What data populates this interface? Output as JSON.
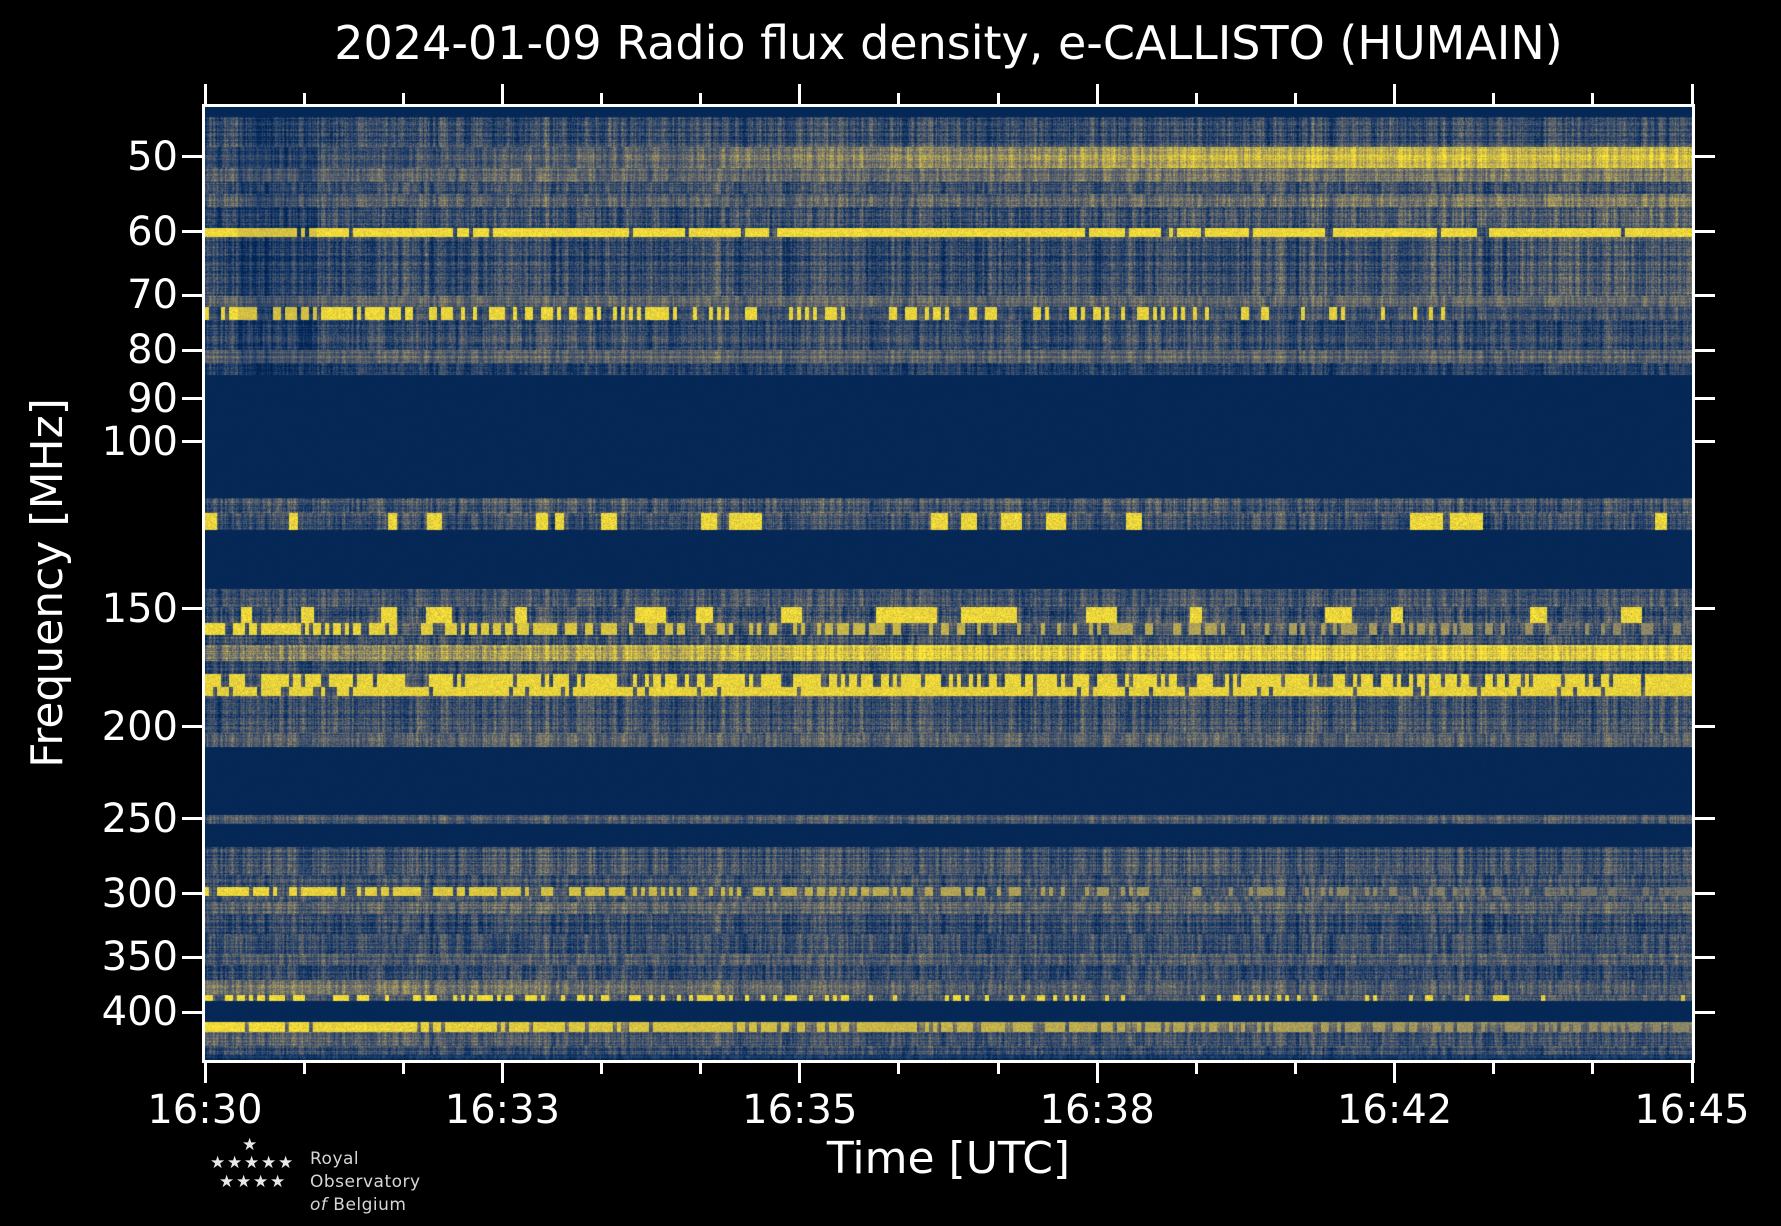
{
  "title": "2024-01-09 Radio flux density, e-CALLISTO (HUMAIN)",
  "xlabel": "Time [UTC]",
  "ylabel": "Frequency [MHz]",
  "logo": {
    "line1": "Royal Observatory",
    "line2_italic": "of",
    "line2_rest": "Belgium",
    "star_icon": "★"
  },
  "chart_data": {
    "type": "heatmap",
    "title": "2024-01-09 Radio flux density, e-CALLISTO (HUMAIN)",
    "xlabel": "Time [UTC]",
    "ylabel": "Frequency [MHz]",
    "instrument": "e-CALLISTO (HUMAIN)",
    "date": "2024-01-09",
    "x_range_utc": [
      "16:30",
      "16:45"
    ],
    "x_major_ticks": [
      "16:30",
      "16:33",
      "16:35",
      "16:38",
      "16:42",
      "16:45"
    ],
    "x_minor_intervals": 15,
    "y_scale": "log",
    "y_range_mhz": [
      44.3,
      449.5
    ],
    "y_ticks_mhz": [
      50,
      60,
      70,
      80,
      90,
      100,
      150,
      200,
      250,
      300,
      350,
      400
    ],
    "grid": false,
    "legend": "none",
    "colors": {
      "background": "#000000",
      "axes_and_text": "#ffffff",
      "cmap_low": "#00224e",
      "cmap_mid": "#6f6d6a",
      "cmap_high": "#fee838"
    },
    "colormap_stops": [
      [
        0.0,
        0,
        34,
        78
      ],
      [
        0.14,
        18,
        55,
        107
      ],
      [
        0.3,
        60,
        78,
        105
      ],
      [
        0.45,
        97,
        101,
        107
      ],
      [
        0.6,
        140,
        133,
        104
      ],
      [
        0.75,
        190,
        174,
        79
      ],
      [
        0.88,
        222,
        201,
        60
      ],
      [
        1.0,
        254,
        232,
        56
      ]
    ],
    "dark_column_overlay": {
      "t": [
        0.022,
        0.075
      ],
      "dv": -0.13,
      "note": "darker vertical strip just after 16:30 in the 45-85 MHz band"
    },
    "bands": [
      {
        "f": [
          44.3,
          45.4
        ],
        "kind": "solid",
        "v": 0.04,
        "note": "unsampled strip at top"
      },
      {
        "f": [
          45.4,
          48.8
        ],
        "kind": "noise",
        "v": 0.27,
        "a": 0.3,
        "dk": true
      },
      {
        "f": [
          48.8,
          51.4
        ],
        "kind": "noise",
        "v": 0.3,
        "a": 0.26,
        "g": [
          0.14,
          0.75,
          0.5
        ],
        "dk": true,
        "note": "50 MHz band brightening to yellow after ~16:32"
      },
      {
        "f": [
          51.4,
          53.2
        ],
        "kind": "noise",
        "v": 0.42,
        "a": 0.24,
        "g": [
          0.3,
          1.0,
          0.14
        ],
        "dk": true
      },
      {
        "f": [
          53.2,
          54.7
        ],
        "kind": "noise",
        "v": 0.3,
        "a": 0.28,
        "dk": true
      },
      {
        "f": [
          54.7,
          56.5
        ],
        "kind": "noise",
        "v": 0.42,
        "a": 0.26,
        "g": [
          0.4,
          1.0,
          0.14
        ],
        "dk": true,
        "note": "sandy haze band ~55 MHz"
      },
      {
        "f": [
          56.5,
          59.4
        ],
        "kind": "noise",
        "v": 0.27,
        "a": 0.3,
        "g": [
          0.5,
          1.0,
          0.12
        ],
        "dk": true
      },
      {
        "f": [
          59.4,
          60.8
        ],
        "kind": "dash",
        "v": 0.3,
        "a": 0.25,
        "d": [
          0.93,
          0.93
        ],
        "og": [
          0.96,
          0.94
        ],
        "dk": true,
        "note": "strong persistent 60 MHz emission line"
      },
      {
        "f": [
          60.8,
          70.1
        ],
        "kind": "noise",
        "v": 0.27,
        "a": 0.3,
        "g": [
          0.62,
          1.0,
          0.1
        ],
        "dk": true
      },
      {
        "f": [
          70.1,
          72.0
        ],
        "kind": "noise",
        "v": 0.44,
        "a": 0.22,
        "dk": true
      },
      {
        "f": [
          72.0,
          74.3
        ],
        "kind": "dash",
        "v": 0.28,
        "a": 0.25,
        "d": [
          0.7,
          0.03
        ],
        "og": [
          0.95,
          0.9
        ],
        "dk": true,
        "note": "73 MHz dashed line fading to the right"
      },
      {
        "f": [
          74.3,
          79.9
        ],
        "kind": "noise",
        "v": 0.27,
        "a": 0.28,
        "dk": true
      },
      {
        "f": [
          79.9,
          82.5
        ],
        "kind": "noise",
        "v": 0.43,
        "a": 0.22,
        "dk": true
      },
      {
        "f": [
          82.5,
          85.0
        ],
        "kind": "noise",
        "v": 0.22,
        "a": 0.26,
        "dk": true
      },
      {
        "f": [
          85.0,
          114.5
        ],
        "kind": "solid",
        "v": 0.04,
        "note": "blanked band 85-115 MHz"
      },
      {
        "f": [
          114.5,
          119.0
        ],
        "kind": "noise",
        "v": 0.34,
        "a": 0.3
      },
      {
        "f": [
          119.0,
          124.0
        ],
        "kind": "blob",
        "v": 0.3,
        "a": 0.28,
        "on": 0.97,
        "note": "sporadic bright bursts ~120 MHz",
        "blobs": [
          [
            0.0,
            0.008
          ],
          [
            0.056,
            0.062
          ],
          [
            0.123,
            0.129
          ],
          [
            0.149,
            0.159
          ],
          [
            0.222,
            0.23
          ],
          [
            0.235,
            0.241
          ],
          [
            0.266,
            0.277
          ],
          [
            0.333,
            0.344
          ],
          [
            0.352,
            0.374
          ],
          [
            0.488,
            0.499
          ],
          [
            0.508,
            0.519
          ],
          [
            0.535,
            0.549
          ],
          [
            0.565,
            0.579
          ],
          [
            0.619,
            0.63
          ],
          [
            0.81,
            0.832
          ],
          [
            0.837,
            0.859
          ],
          [
            0.975,
            0.983
          ]
        ]
      },
      {
        "f": [
          124.0,
          143.0
        ],
        "kind": "solid",
        "v": 0.04,
        "note": "blanked band 124-143 MHz"
      },
      {
        "f": [
          143.0,
          149.5
        ],
        "kind": "noise",
        "v": 0.34,
        "a": 0.28
      },
      {
        "f": [
          149.5,
          155.5
        ],
        "kind": "blob",
        "v": 0.3,
        "a": 0.3,
        "on": 0.98,
        "note": "bright bursts ~150 MHz",
        "blobs": [
          [
            0.024,
            0.031
          ],
          [
            0.064,
            0.073
          ],
          [
            0.118,
            0.129
          ],
          [
            0.148,
            0.166
          ],
          [
            0.208,
            0.216
          ],
          [
            0.289,
            0.31
          ],
          [
            0.33,
            0.341
          ],
          [
            0.387,
            0.401
          ],
          [
            0.451,
            0.492
          ],
          [
            0.508,
            0.546
          ],
          [
            0.592,
            0.613
          ],
          [
            0.662,
            0.67
          ],
          [
            0.753,
            0.771
          ],
          [
            0.797,
            0.805
          ],
          [
            0.891,
            0.902
          ],
          [
            0.952,
            0.966
          ]
        ]
      },
      {
        "f": [
          155.5,
          160.0
        ],
        "kind": "dash",
        "v": 0.33,
        "a": 0.26,
        "d": [
          0.65,
          0.3
        ],
        "og": [
          0.95,
          0.6
        ]
      },
      {
        "f": [
          160.0,
          164.0
        ],
        "kind": "noise",
        "v": 0.29,
        "a": 0.28
      },
      {
        "f": [
          164.0,
          170.5
        ],
        "kind": "noise",
        "v": 0.55,
        "a": 0.3,
        "g": [
          0.05,
          0.5,
          0.33
        ],
        "note": "brightest yellow band ~165 MHz"
      },
      {
        "f": [
          170.5,
          176.0
        ],
        "kind": "noise",
        "v": 0.25,
        "a": 0.28
      },
      {
        "f": [
          176.0,
          181.4
        ],
        "kind": "dash",
        "v": 0.34,
        "a": 0.25,
        "d": [
          0.7,
          0.7
        ],
        "og": [
          0.93,
          0.93
        ],
        "note": "dashed bright line ~178 MHz"
      },
      {
        "f": [
          181.4,
          185.5
        ],
        "kind": "dash",
        "v": 0.35,
        "a": 0.2,
        "d": [
          0.9,
          0.9
        ],
        "og": [
          0.92,
          0.92
        ],
        "note": "bright line ~183 MHz"
      },
      {
        "f": [
          185.5,
          203.0
        ],
        "kind": "noise",
        "v": 0.3,
        "a": 0.3
      },
      {
        "f": [
          203.0,
          210.0
        ],
        "kind": "noise",
        "v": 0.4,
        "a": 0.26
      },
      {
        "f": [
          210.0,
          248.0
        ],
        "kind": "solid",
        "v": 0.04,
        "note": "blanked band 210-248 MHz"
      },
      {
        "f": [
          248.0,
          253.0
        ],
        "kind": "noise",
        "v": 0.38,
        "a": 0.24,
        "note": "thin noisy row at 250 MHz"
      },
      {
        "f": [
          253.0,
          268.0
        ],
        "kind": "solid",
        "v": 0.04
      },
      {
        "f": [
          268.0,
          287.0
        ],
        "kind": "noise",
        "v": 0.32,
        "a": 0.28
      },
      {
        "f": [
          287.0,
          295.0
        ],
        "kind": "noise",
        "v": 0.3,
        "a": 0.26
      },
      {
        "f": [
          295.0,
          302.0
        ],
        "kind": "dash",
        "v": 0.34,
        "a": 0.25,
        "d": [
          0.8,
          0.3
        ],
        "og": [
          0.95,
          0.5
        ],
        "note": "300 MHz line bright at left, fading"
      },
      {
        "f": [
          302.0,
          306.0
        ],
        "kind": "noise",
        "v": 0.32,
        "a": 0.26
      },
      {
        "f": [
          306.0,
          315.0
        ],
        "kind": "noise",
        "v": 0.4,
        "a": 0.25
      },
      {
        "f": [
          315.0,
          331.0
        ],
        "kind": "noise",
        "v": 0.27,
        "a": 0.28
      },
      {
        "f": [
          331.0,
          347.0
        ],
        "kind": "noise",
        "v": 0.31,
        "a": 0.28
      },
      {
        "f": [
          347.0,
          357.0
        ],
        "kind": "noise",
        "v": 0.38,
        "a": 0.25,
        "note": "lighter row near 350 MHz"
      },
      {
        "f": [
          357.0,
          370.0
        ],
        "kind": "noise",
        "v": 0.28,
        "a": 0.28
      },
      {
        "f": [
          370.0,
          384.0
        ],
        "kind": "noise",
        "v": 0.48,
        "a": 0.26,
        "g": [
          0.1,
          0.55,
          -0.15
        ],
        "note": "light band ~375 MHz, strongest at left"
      },
      {
        "f": [
          384.0,
          389.5
        ],
        "kind": "dash",
        "v": 0.33,
        "a": 0.25,
        "d": [
          0.55,
          0.04
        ],
        "og": [
          0.97,
          0.9
        ],
        "note": "bright yellow dashes in left third ~385 MHz"
      },
      {
        "f": [
          389.5,
          410.0
        ],
        "kind": "solid",
        "v": 0.04,
        "note": "blanked band 390-410 MHz"
      },
      {
        "f": [
          410.0,
          420.0
        ],
        "kind": "dash",
        "v": 0.48,
        "a": 0.22,
        "d": [
          0.98,
          0.45
        ],
        "og": [
          0.97,
          0.6
        ],
        "note": "bright 415 MHz band, solid yellow at left"
      },
      {
        "f": [
          420.0,
          434.0
        ],
        "kind": "noise",
        "v": 0.44,
        "a": 0.26,
        "g": [
          0.0,
          0.4,
          -0.12
        ]
      },
      {
        "f": [
          434.0,
          444.0
        ],
        "kind": "noise",
        "v": 0.3,
        "a": 0.26
      },
      {
        "f": [
          444.0,
          449.5
        ],
        "kind": "noise",
        "v": 0.13,
        "a": 0.16,
        "note": "dark strip at bottom edge"
      }
    ]
  }
}
